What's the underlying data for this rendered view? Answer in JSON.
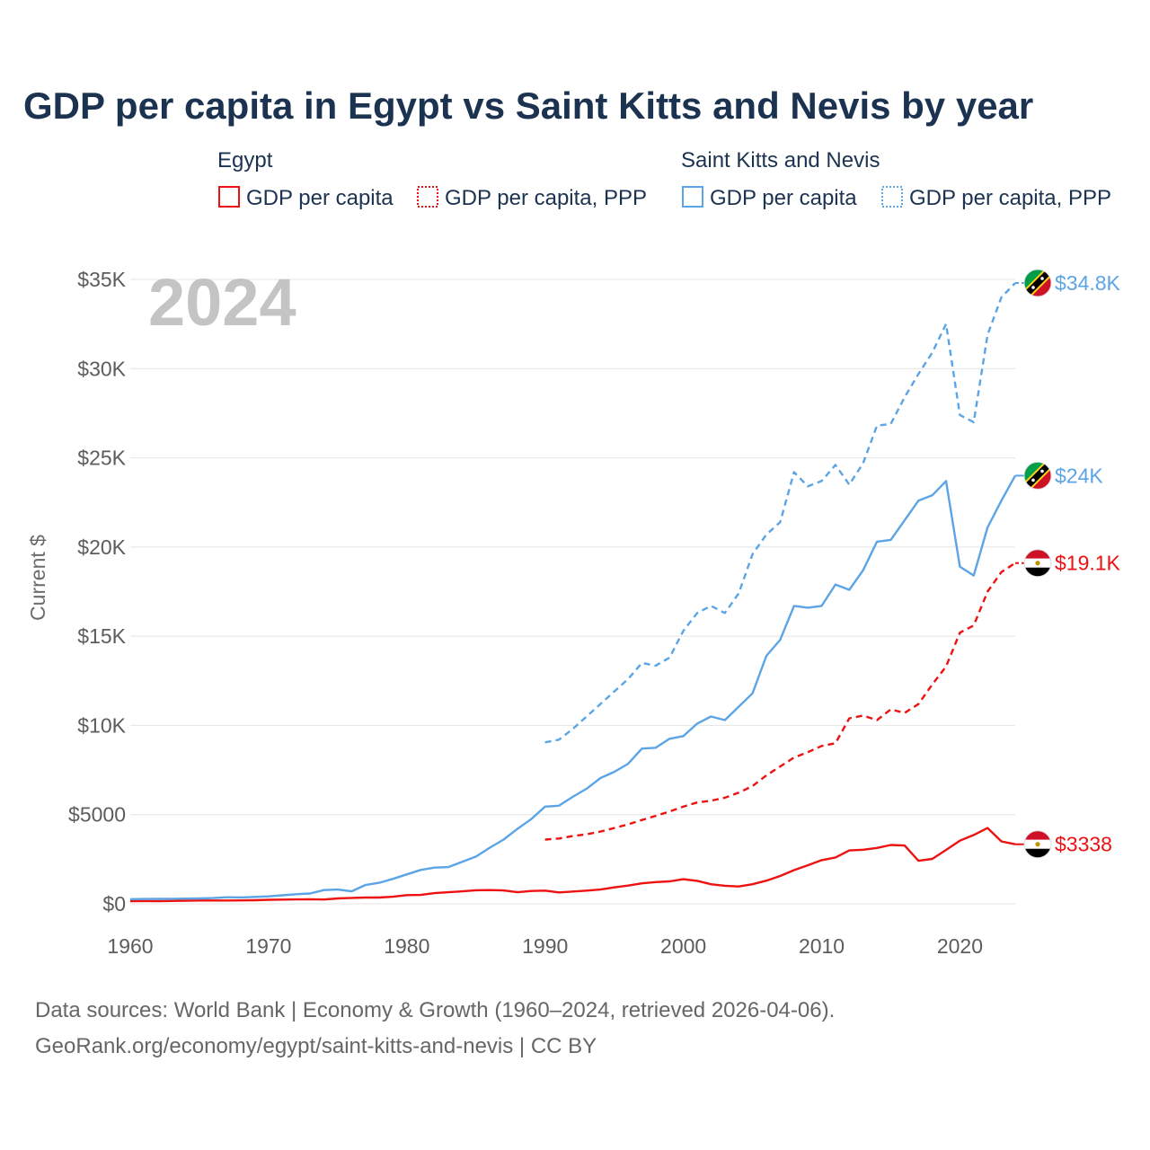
{
  "title": "GDP per capita in Egypt vs Saint Kitts and Nevis by year",
  "legend": {
    "egypt": {
      "group": "Egypt",
      "items": [
        "GDP per capita",
        "GDP per capita, PPP"
      ]
    },
    "skn": {
      "group": "Saint Kitts and Nevis",
      "items": [
        "GDP per capita",
        "GDP per capita, PPP"
      ]
    }
  },
  "year_watermark": "2024",
  "source_lines": [
    "Data sources: World Bank | Economy & Growth (1960–2024, retrieved 2026-04-06).",
    "GeoRank.org/economy/egypt/saint-kitts-and-nevis | CC BY"
  ],
  "colors": {
    "egypt": "#ee1111",
    "skn": "#5ba4e5",
    "title": "#1b3350"
  },
  "chart_data": {
    "type": "line",
    "ylabel": "Current $",
    "xlabel": "",
    "ylim": [
      0,
      35000
    ],
    "xlim": [
      1960,
      2024
    ],
    "y_ticks": [
      {
        "value": 0,
        "label": "$0"
      },
      {
        "value": 5000,
        "label": "$5000"
      },
      {
        "value": 10000,
        "label": "$10K"
      },
      {
        "value": 15000,
        "label": "$15K"
      },
      {
        "value": 20000,
        "label": "$20K"
      },
      {
        "value": 25000,
        "label": "$25K"
      },
      {
        "value": 30000,
        "label": "$30K"
      },
      {
        "value": 35000,
        "label": "$35K"
      }
    ],
    "x_ticks": [
      {
        "value": 1960,
        "label": "1960"
      },
      {
        "value": 1970,
        "label": "1970"
      },
      {
        "value": 1980,
        "label": "1980"
      },
      {
        "value": 1990,
        "label": "1990"
      },
      {
        "value": 2000,
        "label": "2000"
      },
      {
        "value": 2010,
        "label": "2010"
      },
      {
        "value": 2020,
        "label": "2020"
      }
    ],
    "series": [
      {
        "id": "egypt-gdp",
        "name": "Egypt — GDP per capita",
        "country": "egypt",
        "dashed": false,
        "end_label": "$3338",
        "x": [
          1960,
          1961,
          1962,
          1963,
          1964,
          1965,
          1966,
          1967,
          1968,
          1969,
          1970,
          1971,
          1972,
          1973,
          1974,
          1975,
          1976,
          1977,
          1978,
          1979,
          1980,
          1981,
          1982,
          1983,
          1984,
          1985,
          1986,
          1987,
          1988,
          1989,
          1990,
          1991,
          1992,
          1993,
          1994,
          1995,
          1996,
          1997,
          1998,
          1999,
          2000,
          2001,
          2002,
          2003,
          2004,
          2005,
          2006,
          2007,
          2008,
          2009,
          2010,
          2011,
          2012,
          2013,
          2014,
          2015,
          2016,
          2017,
          2018,
          2019,
          2020,
          2021,
          2022,
          2023,
          2024
        ],
        "values": [
          150,
          155,
          150,
          160,
          170,
          185,
          185,
          185,
          190,
          200,
          225,
          235,
          245,
          255,
          240,
          300,
          330,
          350,
          350,
          400,
          490,
          500,
          600,
          650,
          700,
          760,
          770,
          750,
          650,
          720,
          740,
          640,
          690,
          740,
          800,
          920,
          1020,
          1150,
          1220,
          1260,
          1380,
          1290,
          1100,
          1010,
          970,
          1100,
          1300,
          1560,
          1890,
          2160,
          2450,
          2600,
          2990,
          3030,
          3130,
          3300,
          3270,
          2410,
          2520,
          3020,
          3540,
          3860,
          4250,
          3500,
          3338
        ]
      },
      {
        "id": "egypt-ppp",
        "name": "Egypt — GDP per capita, PPP",
        "country": "egypt",
        "dashed": true,
        "end_label": "$19.1K",
        "x": [
          1990,
          1991,
          1992,
          1993,
          1994,
          1995,
          1996,
          1997,
          1998,
          1999,
          2000,
          2001,
          2002,
          2003,
          2004,
          2005,
          2006,
          2007,
          2008,
          2009,
          2010,
          2011,
          2012,
          2013,
          2014,
          2015,
          2016,
          2017,
          2018,
          2019,
          2020,
          2021,
          2022,
          2023,
          2024
        ],
        "values": [
          3600,
          3660,
          3800,
          3900,
          4050,
          4250,
          4450,
          4700,
          4930,
          5170,
          5450,
          5680,
          5780,
          5950,
          6230,
          6600,
          7200,
          7700,
          8200,
          8500,
          8850,
          9000,
          10400,
          10550,
          10300,
          10900,
          10700,
          11200,
          12300,
          13300,
          15200,
          15600,
          17500,
          18600,
          19100
        ]
      },
      {
        "id": "skn-gdp",
        "name": "Saint Kitts and Nevis — GDP per capita",
        "country": "skn",
        "dashed": false,
        "end_label": "$24K",
        "x": [
          1960,
          1961,
          1962,
          1963,
          1964,
          1965,
          1966,
          1967,
          1968,
          1969,
          1970,
          1971,
          1972,
          1973,
          1974,
          1975,
          1976,
          1977,
          1978,
          1979,
          1980,
          1981,
          1982,
          1983,
          1984,
          1985,
          1986,
          1987,
          1988,
          1989,
          1990,
          1991,
          1992,
          1993,
          1994,
          1995,
          1996,
          1997,
          1998,
          1999,
          2000,
          2001,
          2002,
          2003,
          2004,
          2005,
          2006,
          2007,
          2008,
          2009,
          2010,
          2011,
          2012,
          2013,
          2014,
          2015,
          2016,
          2017,
          2018,
          2019,
          2020,
          2021,
          2022,
          2023,
          2024
        ],
        "values": [
          260,
          270,
          275,
          280,
          290,
          300,
          320,
          370,
          360,
          390,
          420,
          480,
          540,
          580,
          770,
          800,
          700,
          1050,
          1180,
          1400,
          1650,
          1900,
          2030,
          2060,
          2350,
          2650,
          3150,
          3600,
          4200,
          4750,
          5450,
          5500,
          6000,
          6450,
          7050,
          7400,
          7850,
          8700,
          8750,
          9250,
          9400,
          10100,
          10500,
          10300,
          11050,
          11800,
          13900,
          14800,
          16700,
          16600,
          16700,
          17900,
          17600,
          18700,
          20300,
          20400,
          21500,
          22600,
          22900,
          23700,
          18900,
          18400,
          21100,
          22600,
          24000
        ]
      },
      {
        "id": "skn-ppp",
        "name": "Saint Kitts and Nevis — GDP per capita, PPP",
        "country": "skn",
        "dashed": true,
        "end_label": "$34.8K",
        "x": [
          1990,
          1991,
          1992,
          1993,
          1994,
          1995,
          1996,
          1997,
          1998,
          1999,
          2000,
          2001,
          2002,
          2003,
          2004,
          2005,
          2006,
          2007,
          2008,
          2009,
          2010,
          2011,
          2012,
          2013,
          2014,
          2015,
          2016,
          2017,
          2018,
          2019,
          2020,
          2021,
          2022,
          2023,
          2024
        ],
        "values": [
          9050,
          9200,
          9800,
          10500,
          11200,
          11900,
          12600,
          13500,
          13350,
          13800,
          15300,
          16300,
          16700,
          16300,
          17400,
          19600,
          20700,
          21400,
          24200,
          23400,
          23700,
          24600,
          23500,
          24700,
          26800,
          26900,
          28400,
          29700,
          30900,
          32500,
          27400,
          27000,
          31900,
          34000,
          34800
        ]
      }
    ]
  }
}
